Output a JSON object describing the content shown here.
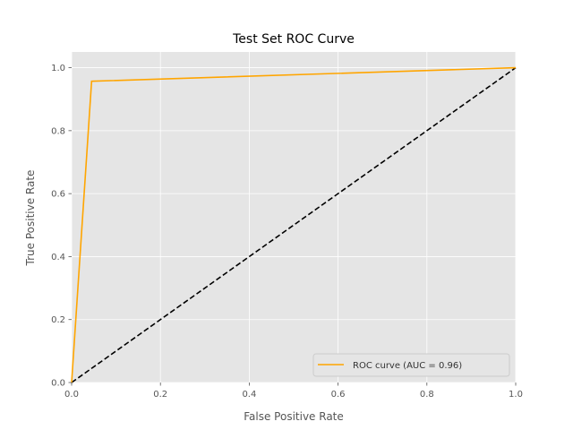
{
  "chart_data": {
    "type": "line",
    "title": "Test Set ROC Curve",
    "xlabel": "False Positive Rate",
    "ylabel": "True Positive Rate",
    "xlim": [
      0.0,
      1.0
    ],
    "ylim": [
      0.0,
      1.05
    ],
    "xticks": [
      0.0,
      0.2,
      0.4,
      0.6,
      0.8,
      1.0
    ],
    "yticks": [
      0.0,
      0.2,
      0.4,
      0.6,
      0.8,
      1.0
    ],
    "xtick_labels": [
      "0.0",
      "0.2",
      "0.4",
      "0.6",
      "0.8",
      "1.0"
    ],
    "ytick_labels": [
      "0.0",
      "0.2",
      "0.4",
      "0.6",
      "0.8",
      "1.0"
    ],
    "grid": true,
    "legend_position": "lower right",
    "series": [
      {
        "name": "ROC curve (AUC = 0.96)",
        "color": "#FFA500",
        "style": "solid",
        "x": [
          0.0,
          0.045,
          1.0
        ],
        "y": [
          0.0,
          0.957,
          1.0
        ]
      },
      {
        "color": "#000000",
        "style": "dashed",
        "x": [
          0.0,
          1.0
        ],
        "y": [
          0.0,
          1.0
        ]
      }
    ],
    "colors": {
      "background": "#E5E5E5",
      "grid": "#FFFFFF"
    }
  }
}
